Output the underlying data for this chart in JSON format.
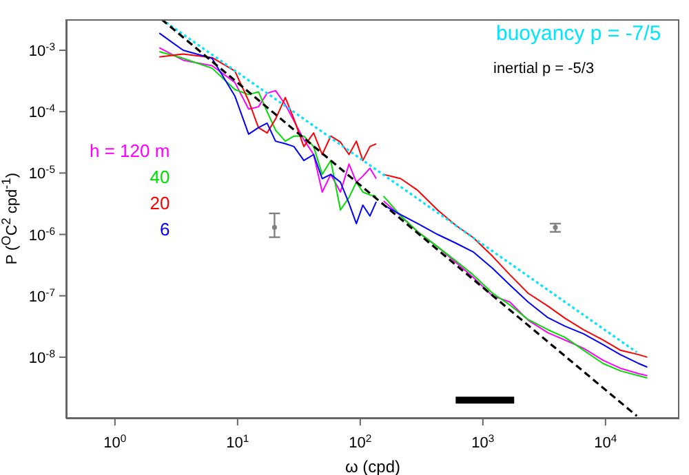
{
  "chart_data": {
    "type": "line",
    "xlabel": "ω (cpd)",
    "ylabel": "P ($^{O}$C$^{2}$ cpd$^{-1}$)",
    "log": "xy",
    "legend": "left",
    "marker": "none",
    "line_style": "solid",
    "xlim": [
      0.4,
      40000
    ],
    "ylim": [
      1e-09,
      0.0032
    ],
    "xticks": [
      {
        "value": 1,
        "label": "10$^{0}$"
      },
      {
        "value": 10,
        "label": "10$^{1}$"
      },
      {
        "value": 100,
        "label": "10$^{2}$"
      },
      {
        "value": 1000,
        "label": "10$^{3}$"
      },
      {
        "value": 10000,
        "label": "10$^{4}$"
      }
    ],
    "yticks": [
      {
        "value": 1e-08,
        "label": "10$^{-8}$"
      },
      {
        "value": 1e-07,
        "label": "10$^{-7}$"
      },
      {
        "value": 1e-06,
        "label": "10$^{-6}$"
      },
      {
        "value": 1e-05,
        "label": "10$^{-5}$"
      },
      {
        "value": 0.0001,
        "label": "10$^{-4}$"
      },
      {
        "value": 0.001,
        "label": "10$^{-3}$"
      }
    ],
    "x": [
      2.3,
      3.6,
      6.2,
      9.5,
      12.3,
      14.8,
      17.4,
      20.4,
      24.5,
      28.8,
      34.7,
      41.7,
      49,
      57.5,
      69,
      81,
      93,
      105,
      120,
      135,
      145,
      155,
      214,
      295,
      427,
      603,
      832,
      1200,
      1660,
      2340,
      3390,
      4680,
      6610,
      9550,
      13200,
      18600,
      21900
    ],
    "series": [
      {
        "name": "h = 120 m",
        "color": "#ff00ff",
        "values": [
          0.0011,
          0.00069,
          0.00056,
          0.0003,
          0.00011,
          0.00012,
          0.0002,
          0.00022,
          0.00013,
          7.1e-05,
          3.5e-05,
          2e-05,
          4.9e-06,
          9.5e-06,
          4.9e-06,
          1.4e-05,
          7.1e-06,
          8.9e-06,
          1.2e-05,
          8.1e-06,
          null,
          3.5e-06,
          2e-06,
          1.1e-06,
          6.3e-07,
          3.5e-07,
          2e-07,
          1e-07,
          7.9e-08,
          4e-08,
          2.5e-08,
          1.9e-08,
          1.4e-08,
          8.9e-09,
          6.6e-09,
          5.4e-09,
          5e-09
        ]
      },
      {
        "name": "40",
        "color": "#00dd00",
        "values": [
          0.00095,
          0.00074,
          0.00051,
          0.00023,
          0.00019,
          0.00021,
          0.0001,
          5e-05,
          3.3e-05,
          4e-05,
          4e-05,
          2.7e-05,
          9.5e-06,
          1.6e-05,
          2.5e-06,
          4e-06,
          7.1e-06,
          4.9e-06,
          4.4e-06,
          4.2e-06,
          null,
          4.2e-06,
          2e-06,
          1.1e-06,
          6.3e-07,
          3.7e-07,
          2.2e-07,
          1.1e-07,
          7.1e-08,
          4.1e-08,
          2.8e-08,
          2.1e-08,
          1.3e-08,
          7.9e-09,
          6e-09,
          5e-09,
          4.6e-09
        ]
      },
      {
        "name": "20",
        "color": "#ff0000",
        "values": [
          0.00078,
          0.00087,
          0.00076,
          0.00046,
          0.00015,
          5.5e-05,
          4.5e-05,
          7.6e-05,
          0.00017,
          7.6e-05,
          2.7e-05,
          4.5e-05,
          2e-05,
          4e-05,
          3.2e-05,
          2e-05,
          3.3e-05,
          1.6e-05,
          2.7e-05,
          3e-05,
          null,
          9.5e-06,
          8.1e-06,
          5.2e-06,
          2.5e-06,
          1.4e-06,
          8.9e-07,
          4.4e-07,
          2.2e-07,
          1.1e-07,
          6.8e-08,
          4.3e-08,
          2.8e-08,
          1.9e-08,
          1.3e-08,
          1.1e-08,
          1e-08
        ]
      },
      {
        "name": "6",
        "color": "#0000ff",
        "values": [
          0.0019,
          0.001,
          0.00074,
          0.00018,
          4.3e-05,
          5.5e-05,
          6.5e-05,
          3.3e-05,
          3e-05,
          2.7e-05,
          1.6e-05,
          2e-05,
          8.1e-06,
          9.5e-06,
          7.1e-06,
          3.2e-06,
          1.5e-06,
          3e-06,
          2e-06,
          3.4e-06,
          null,
          3e-06,
          2.1e-06,
          1.5e-06,
          1e-06,
          7.2e-07,
          5.2e-07,
          2.8e-07,
          1.5e-07,
          7.9e-08,
          4.4e-08,
          3.2e-08,
          2.4e-08,
          1.6e-08,
          1.1e-08,
          7.9e-09,
          6.9e-09
        ]
      },
      {
        "name": "buoyancy p = -7/5",
        "color": "#00e5ff",
        "line_style": "dotted",
        "x": [
          2.4,
          18000
        ],
        "values": [
          0.0032,
          1.2e-08
        ]
      },
      {
        "name": "inertial p = -5/3",
        "color": "#000000",
        "line_style": "dashed",
        "x": [
          2.4,
          18000
        ],
        "values": [
          0.0032,
          1.1e-09
        ]
      },
      {
        "color": "#000000",
        "x": [
          600,
          1800
        ],
        "values": [
          2e-09,
          2e-09
        ]
      },
      {
        "type": "scatter",
        "color": "#808080",
        "marker": "circle",
        "x": [
          20,
          3900
        ],
        "values": [
          1.3e-06,
          1.3e-06
        ],
        "errors": [
          [
            9e-07,
            2.2e-06
          ],
          [
            1.1e-06,
            1.5e-06
          ]
        ]
      }
    ]
  }
}
